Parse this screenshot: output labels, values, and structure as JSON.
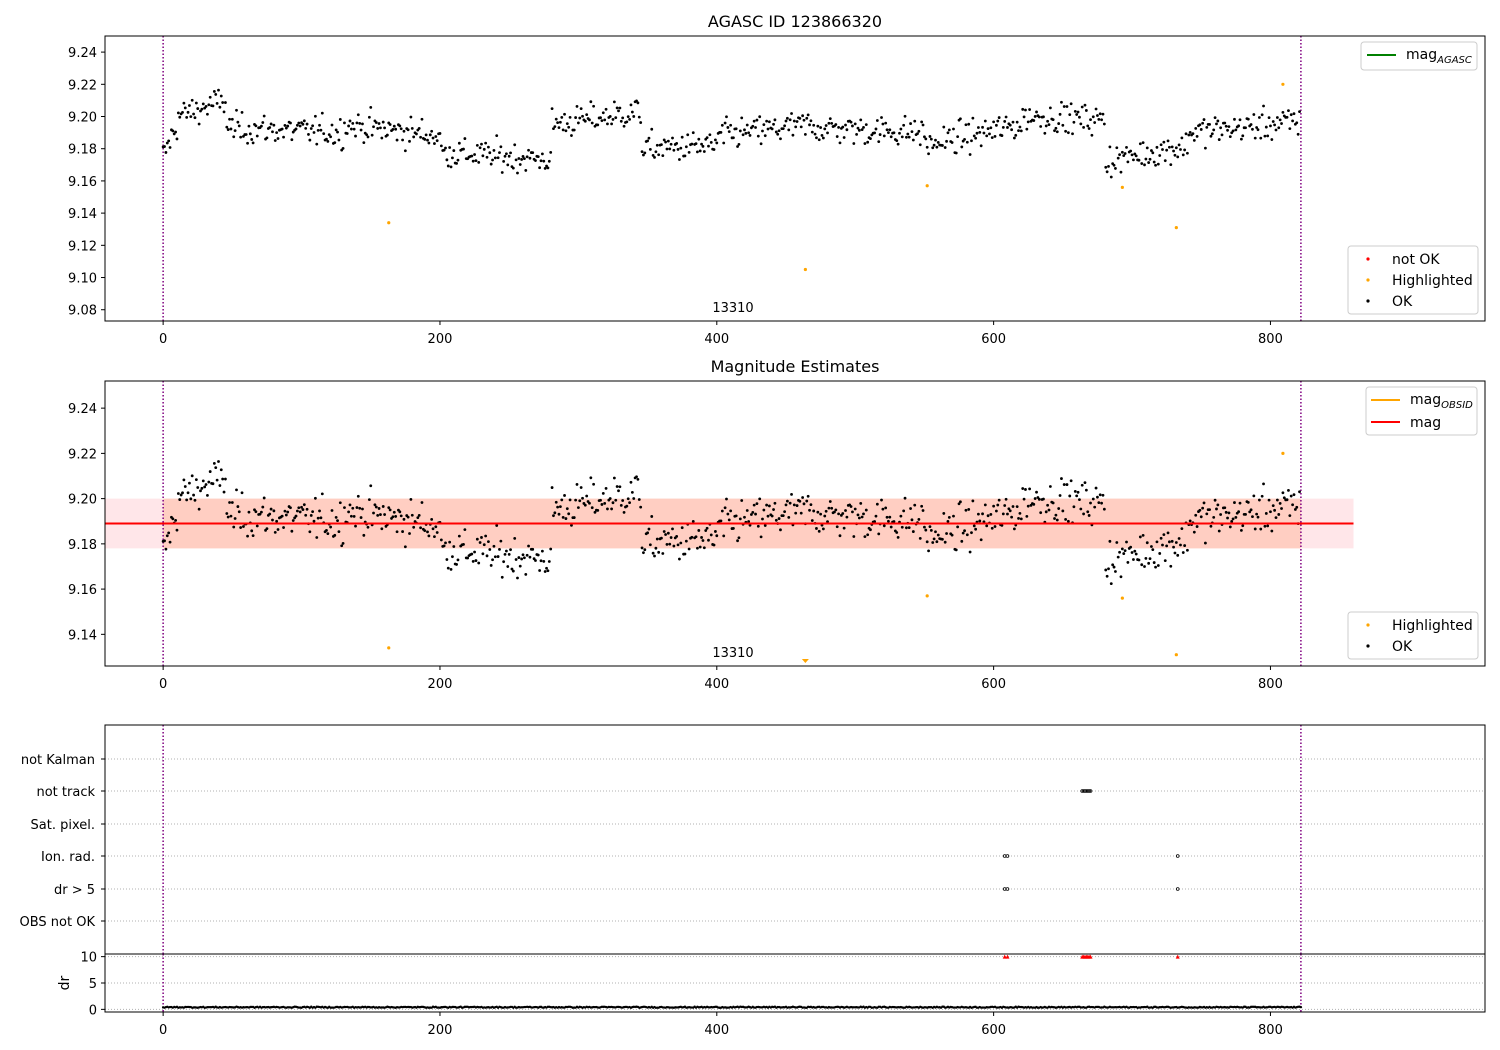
{
  "figure": {
    "ax1_title": "AGASC ID 123866320",
    "ax2_title": "Magnitude Estimates"
  },
  "chart_data": [
    {
      "type": "scatter",
      "title": "AGASC ID 123866320",
      "xlabel": "",
      "ylabel": "",
      "xlim": [
        -42,
        955
      ],
      "ylim": [
        9.073,
        9.25
      ],
      "xticks": [
        0,
        200,
        400,
        600,
        800
      ],
      "yticks": [
        9.08,
        9.1,
        9.12,
        9.14,
        9.16,
        9.18,
        9.2,
        9.22,
        9.24
      ],
      "grid": false,
      "obsid_label": "13310",
      "obsid_boundaries_x": [
        0,
        822
      ],
      "legend_lines": {
        "position": "top-right",
        "entries": [
          {
            "label": "mag",
            "sub": "AGASC",
            "color": "#008000"
          }
        ]
      },
      "legend_points": {
        "position": "lower-right",
        "entries": [
          {
            "label": "not OK",
            "color": "#ff0000"
          },
          {
            "label": "Highlighted",
            "color": "#ffa500"
          },
          {
            "label": "OK",
            "color": "#000000"
          }
        ]
      },
      "series": [
        {
          "name": "OK",
          "color": "#000000",
          "points_ref": "shared_points"
        },
        {
          "name": "Highlighted",
          "color": "#ffa500",
          "x": [
            163,
            464,
            552,
            693,
            732,
            809
          ],
          "y": [
            9.134,
            9.105,
            9.157,
            9.156,
            9.131,
            9.22
          ]
        }
      ]
    },
    {
      "type": "scatter",
      "title": "Magnitude Estimates",
      "xlabel": "",
      "ylabel": "",
      "xlim": [
        -42,
        955
      ],
      "ylim": [
        9.126,
        9.252
      ],
      "xticks": [
        0,
        200,
        400,
        600,
        800
      ],
      "yticks": [
        9.14,
        9.16,
        9.18,
        9.2,
        9.22,
        9.24
      ],
      "grid": false,
      "obsid_label": "13310",
      "obsid_boundaries_x": [
        0,
        822
      ],
      "mag_line": {
        "y": 9.189,
        "x": [
          -42,
          860
        ],
        "band": [
          9.178,
          9.2
        ],
        "color": "#ff0000",
        "band_color": "#ffb6c1"
      },
      "mag_obsid_band": {
        "x": [
          0,
          822
        ],
        "y": [
          9.178,
          9.2
        ],
        "color": "#ffa07a"
      },
      "legend_lines": {
        "position": "top-right",
        "entries": [
          {
            "label": "mag",
            "sub": "OBSID",
            "color": "#ffa500"
          },
          {
            "label": "mag",
            "sub": "",
            "color": "#ff0000"
          }
        ]
      },
      "legend_points": {
        "position": "lower-right",
        "entries": [
          {
            "label": "Highlighted",
            "color": "#ffa500"
          },
          {
            "label": "OK",
            "color": "#000000"
          }
        ]
      },
      "series": [
        {
          "name": "OK",
          "color": "#000000",
          "points_ref": "shared_points"
        },
        {
          "name": "Highlighted",
          "color": "#ffa500",
          "x": [
            163,
            552,
            693,
            732,
            809
          ],
          "y": [
            9.134,
            9.157,
            9.156,
            9.131,
            9.22
          ]
        }
      ],
      "out_of_range_markers": [
        {
          "x": 464,
          "direction": "down",
          "color": "#ffa500"
        }
      ]
    },
    {
      "type": "scatter",
      "title": "",
      "xlabel": "",
      "ylabel": "",
      "xlim": [
        -42,
        955
      ],
      "categories": [
        "not Kalman",
        "not track",
        "Sat. pixel.",
        "Ion. rad.",
        "dr > 5",
        "OBS not OK"
      ],
      "grid": true,
      "obsid_boundaries_x": [
        0,
        822
      ],
      "flags": [
        {
          "category": "not track",
          "x": [
            664,
            665,
            666,
            667,
            668,
            669,
            670
          ]
        },
        {
          "category": "Ion. rad.",
          "x": [
            608,
            610,
            733
          ]
        },
        {
          "category": "dr > 5",
          "x": [
            608,
            610,
            733
          ]
        }
      ]
    },
    {
      "type": "scatter",
      "title": "",
      "xlabel": "",
      "ylabel": "dr",
      "xlim": [
        -42,
        955
      ],
      "ylim": [
        -0.5,
        10.5
      ],
      "xticks": [
        0,
        200,
        400,
        600,
        800
      ],
      "yticks": [
        0,
        5,
        10
      ],
      "grid": true,
      "obsid_boundaries_x": [
        0,
        822
      ],
      "series": [
        {
          "name": "dr",
          "color": "#000000",
          "baseline_from": 0,
          "baseline_to": 822,
          "baseline_values": [
            0.3,
            0.5
          ]
        },
        {
          "name": "dr > 10",
          "color": "#ff0000",
          "marker": "triangle-up",
          "x": [
            608,
            610,
            664,
            665,
            666,
            667,
            668,
            669,
            670,
            733
          ],
          "y": [
            10,
            10,
            10,
            10,
            10,
            10,
            10,
            10,
            10,
            10
          ]
        }
      ]
    }
  ],
  "shared_points": {
    "n": 822,
    "mean": 9.189,
    "description_segments": [
      {
        "x": [
          0,
          10
        ],
        "y": [
          9.175,
          9.195
        ]
      },
      {
        "x": [
          10,
          45
        ],
        "y": [
          9.2,
          9.21
        ]
      },
      {
        "x": [
          45,
          130
        ],
        "y": [
          9.193,
          9.19
        ]
      },
      {
        "x": [
          130,
          200
        ],
        "y": [
          9.195,
          9.188
        ]
      },
      {
        "x": [
          200,
          280
        ],
        "y": [
          9.178,
          9.173
        ]
      },
      {
        "x": [
          280,
          345
        ],
        "y": [
          9.195,
          9.203
        ]
      },
      {
        "x": [
          345,
          400
        ],
        "y": [
          9.18,
          9.182
        ]
      },
      {
        "x": [
          400,
          470
        ],
        "y": [
          9.188,
          9.195
        ]
      },
      {
        "x": [
          470,
          550
        ],
        "y": [
          9.193,
          9.19
        ]
      },
      {
        "x": [
          550,
          620
        ],
        "y": [
          9.182,
          9.195
        ]
      },
      {
        "x": [
          620,
          680
        ],
        "y": [
          9.2,
          9.198
        ]
      },
      {
        "x": [
          680,
          740
        ],
        "y": [
          9.172,
          9.182
        ]
      },
      {
        "x": [
          740,
          822
        ],
        "y": [
          9.19,
          9.197
        ]
      }
    ]
  }
}
